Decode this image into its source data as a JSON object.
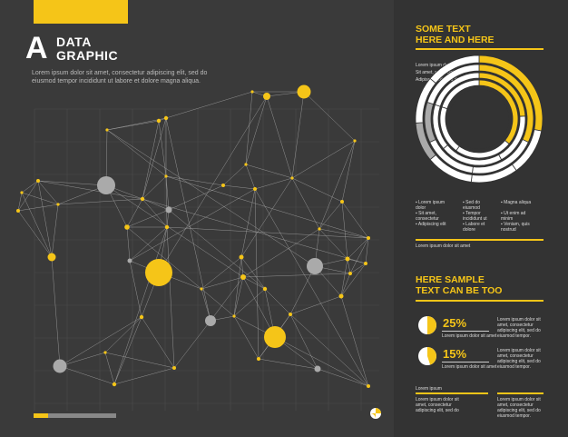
{
  "header": {
    "letter": "A",
    "line1": "DATA",
    "line2": "GRAPHIC",
    "description": "Lorem ipsum dolor sit amet, consectetur adipiscing elit, sed do eiusmod tempor incididunt ut labore et dolore magna aliqua."
  },
  "colors": {
    "accent": "#f5c518",
    "bg_dark": "#3a3a3a",
    "panel": "#333333",
    "grey": "#aaaaaa"
  },
  "right": {
    "heading1_line1": "SOME TEXT",
    "heading1_line2": "HERE AND HERE",
    "ring_labels": [
      "Lorem ipsum dolor",
      "Sit amet, consectetur",
      "Adipiscing elit, sed do"
    ],
    "legend": [
      [
        "Lorem ipsum",
        "dolor"
      ],
      [
        "Sit amet,",
        "consectetur"
      ],
      [
        "Adipiscing elit"
      ],
      [
        "Sed do",
        "eiusmod"
      ],
      [
        "Tempor",
        "incididunt ut"
      ],
      [
        "Labore et",
        "dolore"
      ],
      [
        "Magna aliqua"
      ],
      [
        "Ut enim ad",
        "minim"
      ],
      [
        "Veniam, quis",
        "nostrud"
      ]
    ],
    "summary": "Lorem ipsum dolor sit amet",
    "heading2_line1": "HERE SAMPLE",
    "heading2_line2": "TEXT CAN BE TOO",
    "stat1": {
      "value": "25%",
      "label": "Lorem ipsum dolor sit amet",
      "fraction": 0.25
    },
    "stat2": {
      "value": "15%",
      "label": "Lorem ipsum dolor sit amet",
      "fraction": 0.15
    },
    "side_text": [
      "Lorem ipsum dolor sit",
      "amet, consectetur",
      "adipiscing elit, sed do",
      "eiusmod tempor."
    ],
    "footer_left_label": "Lorem ipsum",
    "footer_left_text": [
      "Lorem ipsum dolor sit",
      "amet, consectetur",
      "adipiscing elit, sed do"
    ],
    "footer_right_text": [
      "Lorem ipsum dolor sit",
      "amet, consectetur",
      "adipiscing elit, sed do",
      "eiusmod tempor."
    ]
  }
}
